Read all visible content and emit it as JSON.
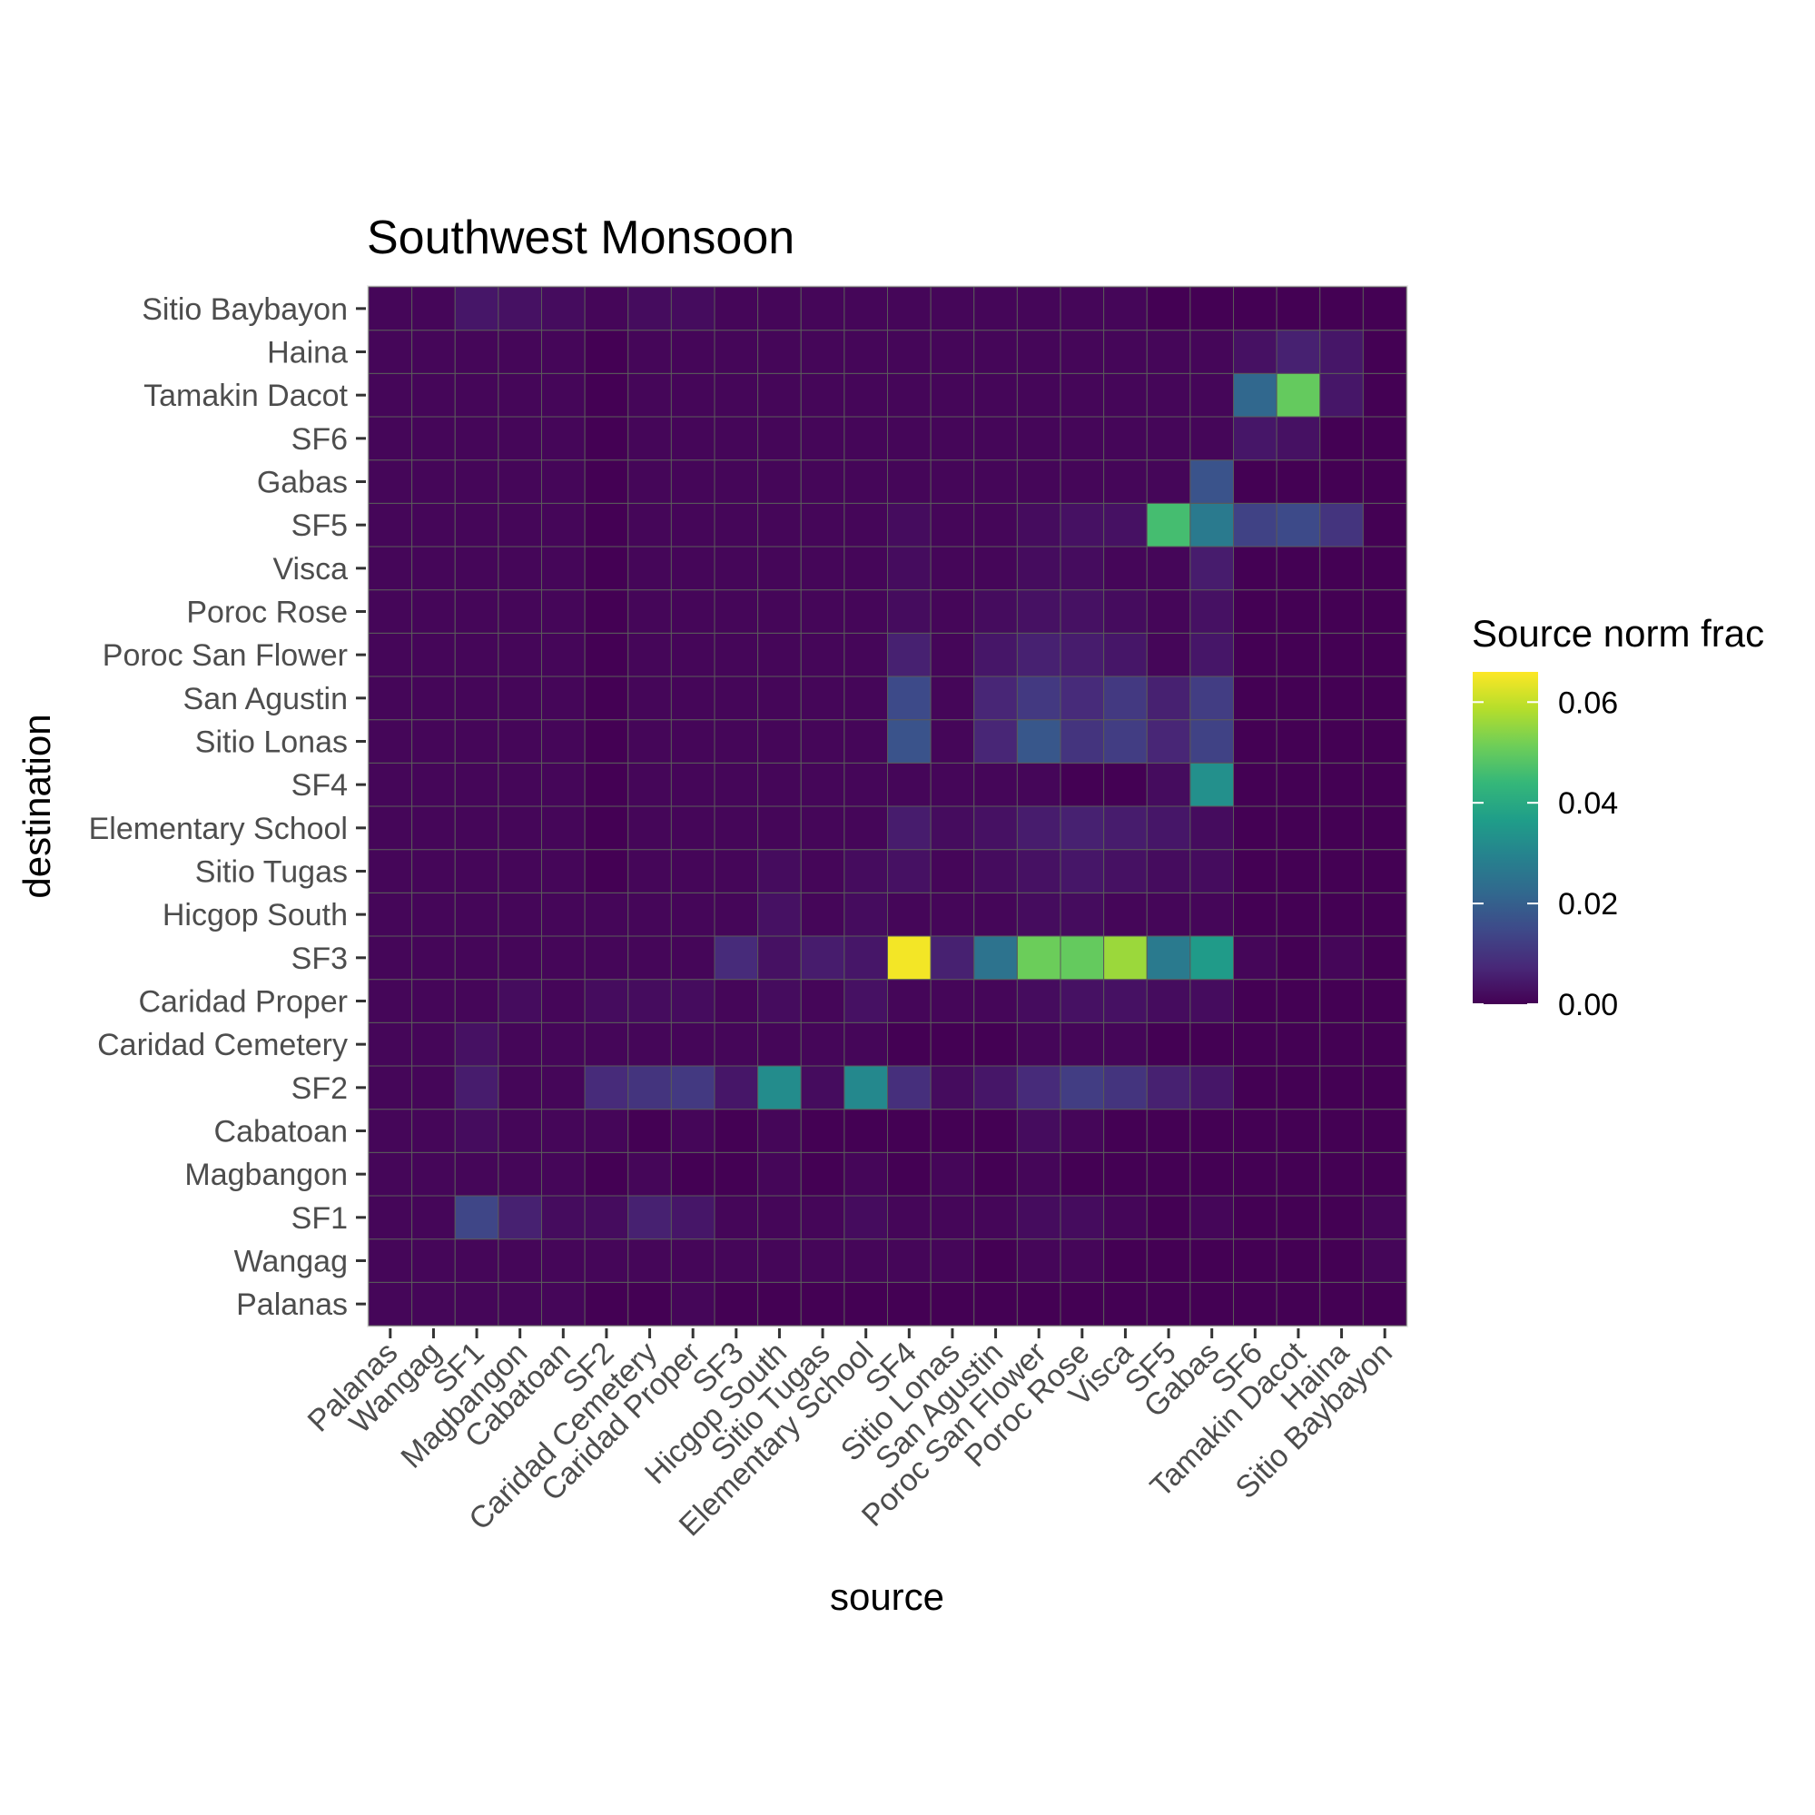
{
  "chart_data": {
    "type": "heatmap",
    "title": "Southwest Monsoon",
    "xlabel": "source",
    "ylabel": "destination",
    "x_categories": [
      "Palanas",
      "Wangag",
      "SF1",
      "Magbangon",
      "Cabatoan",
      "SF2",
      "Caridad Cemetery",
      "Caridad Proper",
      "SF3",
      "Hicgop South",
      "Sitio Tugas",
      "Elementary School",
      "SF4",
      "Sitio Lonas",
      "San Agustin",
      "Poroc San Flower",
      "Poroc Rose",
      "Visca",
      "SF5",
      "Gabas",
      "SF6",
      "Tamakin Dacot",
      "Haina",
      "Sitio Baybayon"
    ],
    "y_categories": [
      "Palanas",
      "Wangag",
      "SF1",
      "Magbangon",
      "Cabatoan",
      "SF2",
      "Caridad Cemetery",
      "Caridad Proper",
      "SF3",
      "Hicgop South",
      "Sitio Tugas",
      "Elementary School",
      "SF4",
      "Sitio Lonas",
      "San Agustin",
      "Poroc San Flower",
      "Poroc Rose",
      "Visca",
      "SF5",
      "Gabas",
      "SF6",
      "Tamakin Dacot",
      "Haina",
      "Sitio Baybayon"
    ],
    "values": [
      [
        0.001,
        0.001,
        0.001,
        0.001,
        0.001,
        0,
        0,
        0.001,
        0,
        0,
        0,
        0,
        0,
        0,
        0,
        0,
        0,
        0,
        0,
        0,
        0,
        0,
        0,
        0
      ],
      [
        0.001,
        0.001,
        0.001,
        0.001,
        0.001,
        0.001,
        0.001,
        0.001,
        0.001,
        0.001,
        0.001,
        0.001,
        0.001,
        0.001,
        0,
        0.001,
        0.001,
        0,
        0,
        0,
        0,
        0,
        0,
        0.001
      ],
      [
        0.001,
        0.001,
        0.014,
        0.006,
        0.002,
        0.002,
        0.006,
        0.004,
        0.001,
        0.001,
        0.001,
        0.002,
        0.001,
        0.001,
        0.001,
        0.002,
        0.002,
        0.001,
        0,
        0.001,
        0,
        0,
        0,
        0.001
      ],
      [
        0.001,
        0.001,
        0.001,
        0.001,
        0.001,
        0,
        0.001,
        0,
        0,
        0.001,
        0,
        0.001,
        0,
        0.001,
        0,
        0.001,
        0,
        0,
        0,
        0,
        0,
        0,
        0,
        0
      ],
      [
        0.001,
        0.001,
        0.002,
        0.001,
        0.001,
        0.001,
        0,
        0.001,
        0,
        0.001,
        0,
        0,
        0,
        0,
        0,
        0.002,
        0.001,
        0,
        0,
        0,
        0,
        0,
        0,
        0
      ],
      [
        0.001,
        0.001,
        0.005,
        0.001,
        0.001,
        0.008,
        0.01,
        0.011,
        0.004,
        0.032,
        0.002,
        0.031,
        0.009,
        0.002,
        0.004,
        0.008,
        0.012,
        0.01,
        0.006,
        0.004,
        0,
        0,
        0,
        0
      ],
      [
        0.001,
        0.001,
        0.003,
        0.001,
        0.001,
        0.001,
        0.001,
        0.001,
        0.001,
        0.001,
        0.001,
        0.001,
        0,
        0,
        0,
        0.001,
        0.001,
        0.001,
        0,
        0,
        0,
        0,
        0,
        0
      ],
      [
        0.001,
        0.001,
        0.001,
        0.002,
        0.001,
        0.002,
        0.002,
        0.002,
        0.001,
        0.002,
        0.001,
        0.003,
        0.001,
        0.001,
        0.001,
        0.002,
        0.003,
        0.003,
        0.002,
        0.002,
        0,
        0,
        0,
        0
      ],
      [
        0.001,
        0.001,
        0.001,
        0.001,
        0.001,
        0.001,
        0.001,
        0.001,
        0.008,
        0.003,
        0.005,
        0.004,
        0.065,
        0.006,
        0.025,
        0.051,
        0.05,
        0.056,
        0.027,
        0.036,
        0.001,
        0,
        0.001,
        0
      ],
      [
        0.001,
        0.001,
        0.001,
        0.001,
        0.001,
        0.001,
        0.001,
        0.001,
        0.001,
        0.003,
        0.001,
        0.002,
        0.001,
        0.001,
        0.001,
        0.002,
        0.002,
        0.001,
        0.001,
        0.001,
        0,
        0,
        0,
        0
      ],
      [
        0.001,
        0.001,
        0.001,
        0.001,
        0.001,
        0,
        0.001,
        0.001,
        0.001,
        0.002,
        0.001,
        0.002,
        0.003,
        0.001,
        0.002,
        0.003,
        0.004,
        0.003,
        0.002,
        0.002,
        0,
        0,
        0,
        0
      ],
      [
        0.001,
        0.001,
        0.001,
        0.001,
        0.001,
        0,
        0.001,
        0.001,
        0.001,
        0.001,
        0.001,
        0.001,
        0.005,
        0.002,
        0.003,
        0.005,
        0.006,
        0.005,
        0.004,
        0.002,
        0,
        0,
        0,
        0
      ],
      [
        0.001,
        0.001,
        0.001,
        0.001,
        0.001,
        0,
        0.001,
        0.001,
        0.001,
        0.001,
        0.001,
        0.001,
        0.001,
        0.001,
        0.001,
        0.001,
        0,
        0,
        0.002,
        0.033,
        0,
        0,
        0,
        0
      ],
      [
        0.001,
        0.001,
        0.001,
        0.001,
        0.001,
        0,
        0.001,
        0.001,
        0.001,
        0.001,
        0.001,
        0.001,
        0.017,
        0.001,
        0.007,
        0.018,
        0.01,
        0.012,
        0.007,
        0.013,
        0,
        0,
        0,
        0
      ],
      [
        0.001,
        0.001,
        0.001,
        0.001,
        0.001,
        0,
        0.001,
        0.001,
        0.001,
        0.001,
        0.001,
        0.001,
        0.015,
        0.001,
        0.007,
        0.011,
        0.008,
        0.011,
        0.006,
        0.012,
        0,
        0,
        0,
        0
      ],
      [
        0.001,
        0.001,
        0.001,
        0.001,
        0.001,
        0,
        0.001,
        0.001,
        0.001,
        0.001,
        0.001,
        0.001,
        0.006,
        0.001,
        0.004,
        0.006,
        0.005,
        0.004,
        0.001,
        0.004,
        0,
        0,
        0,
        0
      ],
      [
        0.001,
        0.001,
        0.001,
        0.001,
        0.001,
        0,
        0.001,
        0.001,
        0.001,
        0.001,
        0.001,
        0.001,
        0.002,
        0.001,
        0.002,
        0.003,
        0.003,
        0.002,
        0.001,
        0.003,
        0,
        0,
        0,
        0
      ],
      [
        0.001,
        0.001,
        0.001,
        0.001,
        0.001,
        0,
        0.001,
        0.001,
        0.001,
        0.001,
        0.001,
        0.001,
        0.002,
        0.001,
        0.001,
        0.002,
        0.002,
        0.001,
        0.001,
        0.005,
        0,
        0,
        0,
        0
      ],
      [
        0.001,
        0.001,
        0.001,
        0.001,
        0.001,
        0,
        0.001,
        0.001,
        0.001,
        0.001,
        0.001,
        0.001,
        0.002,
        0.001,
        0.001,
        0.002,
        0.003,
        0.003,
        0.046,
        0.027,
        0.013,
        0.015,
        0.01,
        0
      ],
      [
        0.001,
        0.001,
        0.001,
        0.001,
        0.001,
        0,
        0.001,
        0.001,
        0.001,
        0.001,
        0.001,
        0.001,
        0.001,
        0.001,
        0.001,
        0.001,
        0.001,
        0.001,
        0.001,
        0.017,
        0,
        0,
        0,
        0
      ],
      [
        0.001,
        0.001,
        0.001,
        0.001,
        0.001,
        0,
        0.001,
        0.001,
        0.001,
        0.001,
        0.001,
        0.001,
        0.001,
        0.001,
        0.001,
        0.001,
        0.001,
        0.001,
        0.001,
        0.001,
        0.004,
        0.003,
        0,
        0
      ],
      [
        0.001,
        0.001,
        0.001,
        0.001,
        0.001,
        0,
        0.001,
        0.001,
        0.001,
        0.001,
        0.001,
        0.001,
        0.001,
        0.001,
        0.001,
        0.001,
        0.001,
        0.001,
        0.001,
        0.001,
        0.022,
        0.05,
        0.004,
        0
      ],
      [
        0.001,
        0.001,
        0.001,
        0.001,
        0.001,
        0,
        0.001,
        0.001,
        0.001,
        0.001,
        0.001,
        0.001,
        0.001,
        0.001,
        0.001,
        0.001,
        0.001,
        0.001,
        0.001,
        0.001,
        0.003,
        0.006,
        0.004,
        0
      ],
      [
        0.001,
        0.001,
        0.004,
        0.003,
        0.002,
        0.001,
        0.002,
        0.002,
        0.001,
        0.001,
        0.001,
        0.001,
        0.001,
        0.001,
        0.001,
        0.001,
        0.001,
        0.001,
        0,
        0,
        0,
        0,
        0,
        0
      ]
    ],
    "color_scale": {
      "name": "viridis",
      "min": 0,
      "max": 0.066,
      "stops": [
        "#440154",
        "#482878",
        "#3e4989",
        "#31688e",
        "#26828e",
        "#1f9e89",
        "#35b779",
        "#6ece58",
        "#b5de2b",
        "#fde725"
      ]
    },
    "legend": {
      "title": "Source norm frac",
      "ticks": [
        0,
        0.02,
        0.04,
        0.06
      ],
      "tick_labels": [
        "0.00",
        "0.02",
        "0.04",
        "0.06"
      ],
      "position": "right"
    },
    "grid": true
  }
}
